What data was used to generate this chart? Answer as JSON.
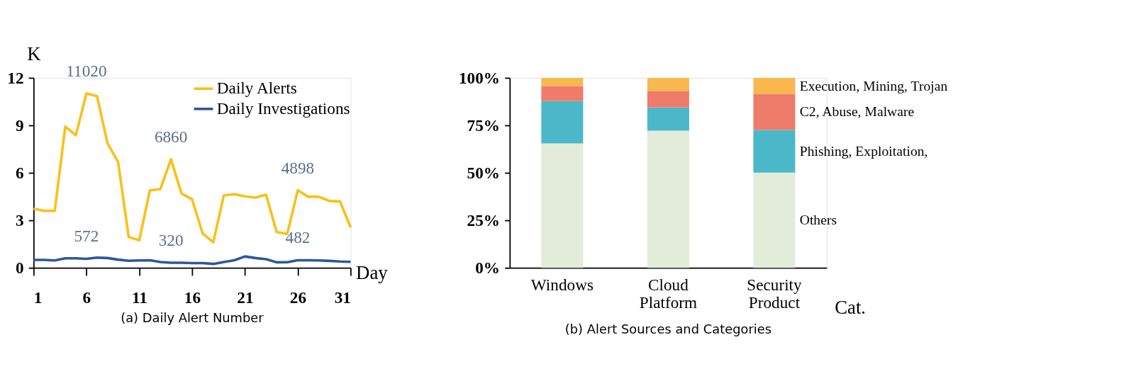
{
  "chart_data": [
    {
      "type": "line",
      "title": "(a) Daily Alert Number",
      "xlabel": "Day",
      "ylabel": "K",
      "x": [
        1,
        2,
        3,
        4,
        5,
        6,
        7,
        8,
        9,
        10,
        11,
        12,
        13,
        14,
        15,
        16,
        17,
        18,
        19,
        20,
        21,
        22,
        23,
        24,
        25,
        26,
        27,
        28,
        29,
        30,
        31
      ],
      "series": [
        {
          "name": "Daily Alerts",
          "color": "#fcbf16",
          "values": [
            3.73,
            3.6,
            3.6,
            8.92,
            8.38,
            11.02,
            10.85,
            7.86,
            6.68,
            1.95,
            1.74,
            4.9,
            4.98,
            6.86,
            4.69,
            4.33,
            2.17,
            1.62,
            4.57,
            4.65,
            4.52,
            4.44,
            4.62,
            2.27,
            2.14,
            4.898,
            4.49,
            4.49,
            4.22,
            4.2,
            2.55
          ]
        },
        {
          "name": "Daily Investigations",
          "color": "#2f56a0",
          "values": [
            0.5,
            0.5,
            0.47,
            0.6,
            0.6,
            0.572,
            0.65,
            0.62,
            0.52,
            0.45,
            0.47,
            0.48,
            0.37,
            0.32,
            0.32,
            0.3,
            0.3,
            0.25,
            0.37,
            0.48,
            0.72,
            0.62,
            0.55,
            0.35,
            0.36,
            0.482,
            0.48,
            0.47,
            0.44,
            0.4,
            0.38
          ]
        }
      ],
      "annotations": [
        {
          "text": "11020",
          "x": 6,
          "y": 11.02
        },
        {
          "text": "6860",
          "x": 14,
          "y": 6.86
        },
        {
          "text": "4898",
          "x": 26,
          "y": 4.898
        },
        {
          "text": "572",
          "x": 6,
          "y": 0.572
        },
        {
          "text": "320",
          "x": 14,
          "y": 0.32
        },
        {
          "text": "482",
          "x": 26,
          "y": 0.482
        }
      ],
      "xlim": [
        1,
        31
      ],
      "xticks": [
        1,
        6,
        11,
        16,
        21,
        26,
        31
      ],
      "ylim": [
        0,
        12
      ],
      "yticks": [
        0,
        3,
        6,
        9,
        12
      ],
      "grid": false,
      "legend": "top right",
      "marker": "none",
      "line_style": "solid"
    },
    {
      "type": "bar",
      "stacked": true,
      "title": "(b) Alert Sources and Categories",
      "xlabel": "Cat.",
      "categories": [
        "Windows",
        "Cloud Platform",
        "Security Product"
      ],
      "series": [
        {
          "name": "Others",
          "color": "#e2ecd9",
          "values": [
            65.5,
            72.2,
            50.1
          ]
        },
        {
          "name": "Phishing, Exploitation,",
          "color": "#4ab8c8",
          "values": [
            22.3,
            12.2,
            22.5
          ]
        },
        {
          "name": "C2, Abuse, Malware",
          "color": "#ef7b6a",
          "values": [
            7.9,
            8.5,
            19.0
          ]
        },
        {
          "name": "Execution, Mining, Trojan",
          "color": "#f8b84e",
          "values": [
            4.3,
            7.1,
            8.4
          ]
        }
      ],
      "ylim": [
        0,
        100
      ],
      "yticks": [
        {
          "value": 0,
          "label": "0%"
        },
        {
          "value": 25,
          "label": "25%"
        },
        {
          "value": 50,
          "label": "50%"
        },
        {
          "value": 75,
          "label": "75%"
        },
        {
          "value": 100,
          "label": "100%"
        }
      ],
      "grid": false,
      "legend": false
    }
  ]
}
